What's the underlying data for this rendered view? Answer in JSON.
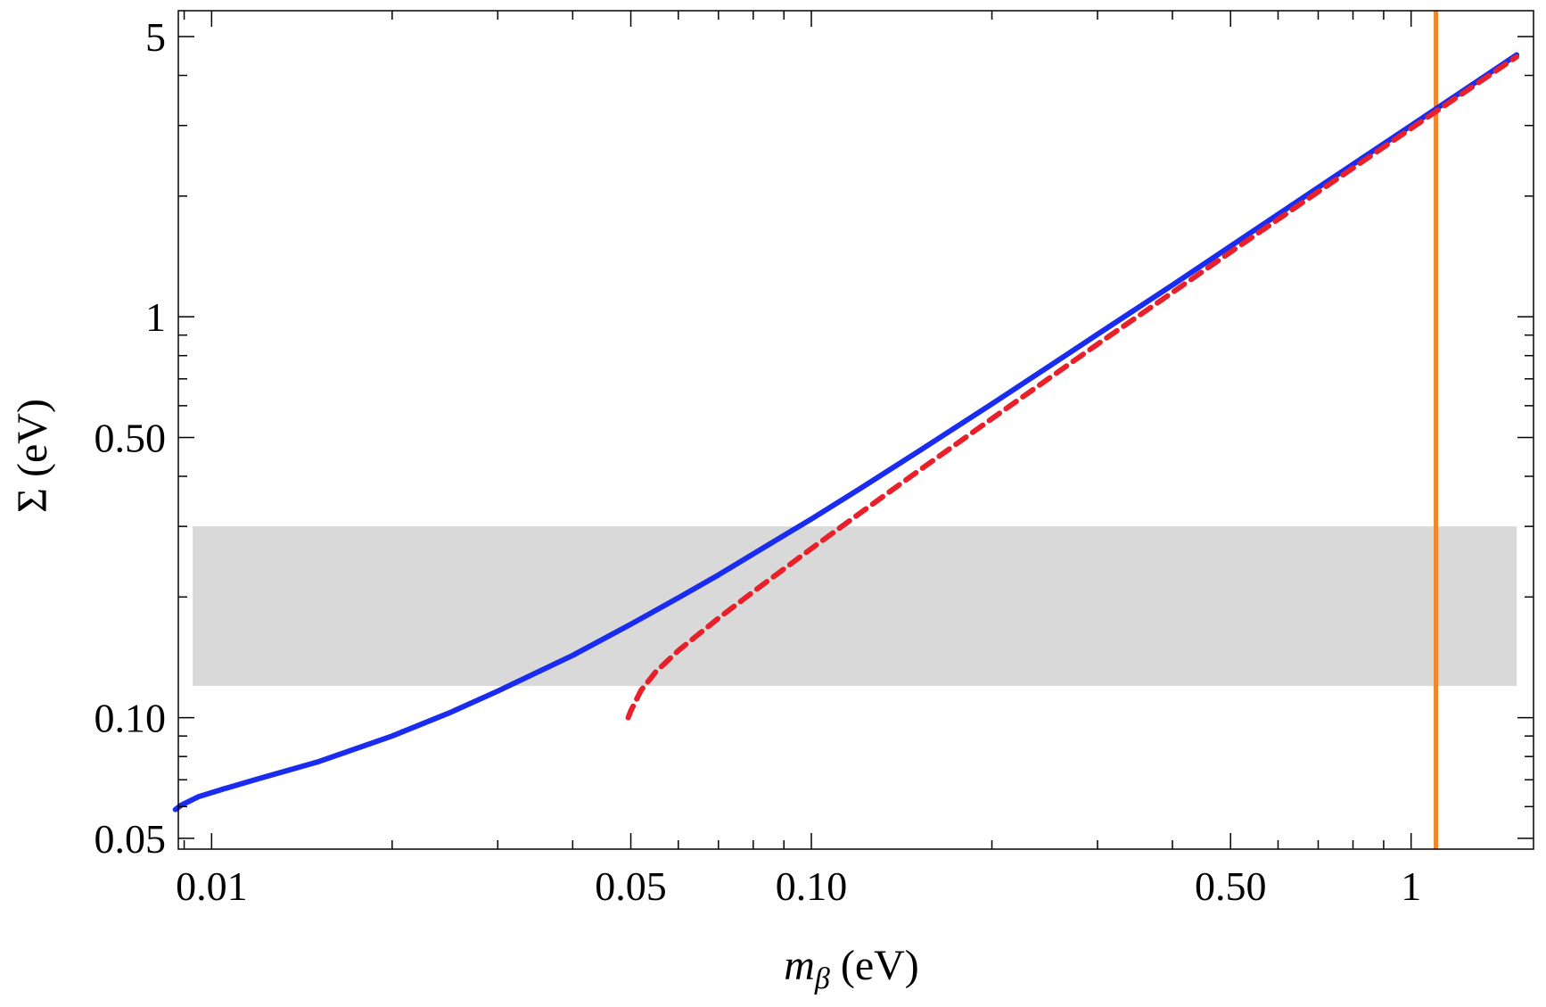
{
  "chart_data": {
    "type": "line",
    "x_scale": "log",
    "y_scale": "log",
    "xlim": [
      0.0088,
      1.6
    ],
    "ylim": [
      0.047,
      5.8
    ],
    "xlabel": {
      "symbol": "m",
      "subscript": "β",
      "unit": " (eV)"
    },
    "ylabel": "Σ (eV)",
    "x_major_ticks": [
      {
        "value": 0.01,
        "label": "0.01"
      },
      {
        "value": 0.05,
        "label": "0.05"
      },
      {
        "value": 0.1,
        "label": "0.10"
      },
      {
        "value": 0.5,
        "label": "0.50"
      },
      {
        "value": 1,
        "label": "1"
      }
    ],
    "y_major_ticks": [
      {
        "value": 0.05,
        "label": "0.05"
      },
      {
        "value": 0.1,
        "label": "0.10"
      },
      {
        "value": 0.5,
        "label": "0.50"
      },
      {
        "value": 1,
        "label": "1"
      },
      {
        "value": 5,
        "label": "5"
      }
    ],
    "band": {
      "x_range": [
        0.0093,
        1.5
      ],
      "y_range": [
        0.12,
        0.3
      ],
      "color": "#d9d9d9"
    },
    "vertical_line": {
      "x": 1.1,
      "color": "#f0882b"
    },
    "series": [
      {
        "style": "solid",
        "color": "#1a2cf0",
        "x": [
          0.0087,
          0.0089,
          0.0095,
          0.0105,
          0.012,
          0.015,
          0.02,
          0.025,
          0.03,
          0.04,
          0.05,
          0.06,
          0.07,
          0.08,
          0.1,
          0.12,
          0.15,
          0.2,
          0.25,
          0.3,
          0.4,
          0.5,
          0.7,
          1.0,
          1.2,
          1.5
        ],
        "y": [
          0.059,
          0.0605,
          0.0635,
          0.0665,
          0.0705,
          0.0775,
          0.09,
          0.103,
          0.1165,
          0.143,
          0.171,
          0.199,
          0.227,
          0.256,
          0.313,
          0.371,
          0.459,
          0.606,
          0.755,
          0.904,
          1.2,
          1.5,
          2.1,
          3.0,
          3.6,
          4.5
        ]
      },
      {
        "style": "dashed",
        "color": "#e8202a",
        "x": [
          0.0495,
          0.05,
          0.052,
          0.055,
          0.06,
          0.07,
          0.08,
          0.1,
          0.12,
          0.15,
          0.2,
          0.25,
          0.3,
          0.4,
          0.5,
          0.7,
          1.0,
          1.2,
          1.5
        ],
        "y": [
          0.1,
          0.104,
          0.117,
          0.13,
          0.147,
          0.177,
          0.206,
          0.264,
          0.322,
          0.41,
          0.557,
          0.705,
          0.854,
          1.15,
          1.45,
          2.05,
          2.95,
          3.55,
          4.45
        ]
      }
    ]
  }
}
